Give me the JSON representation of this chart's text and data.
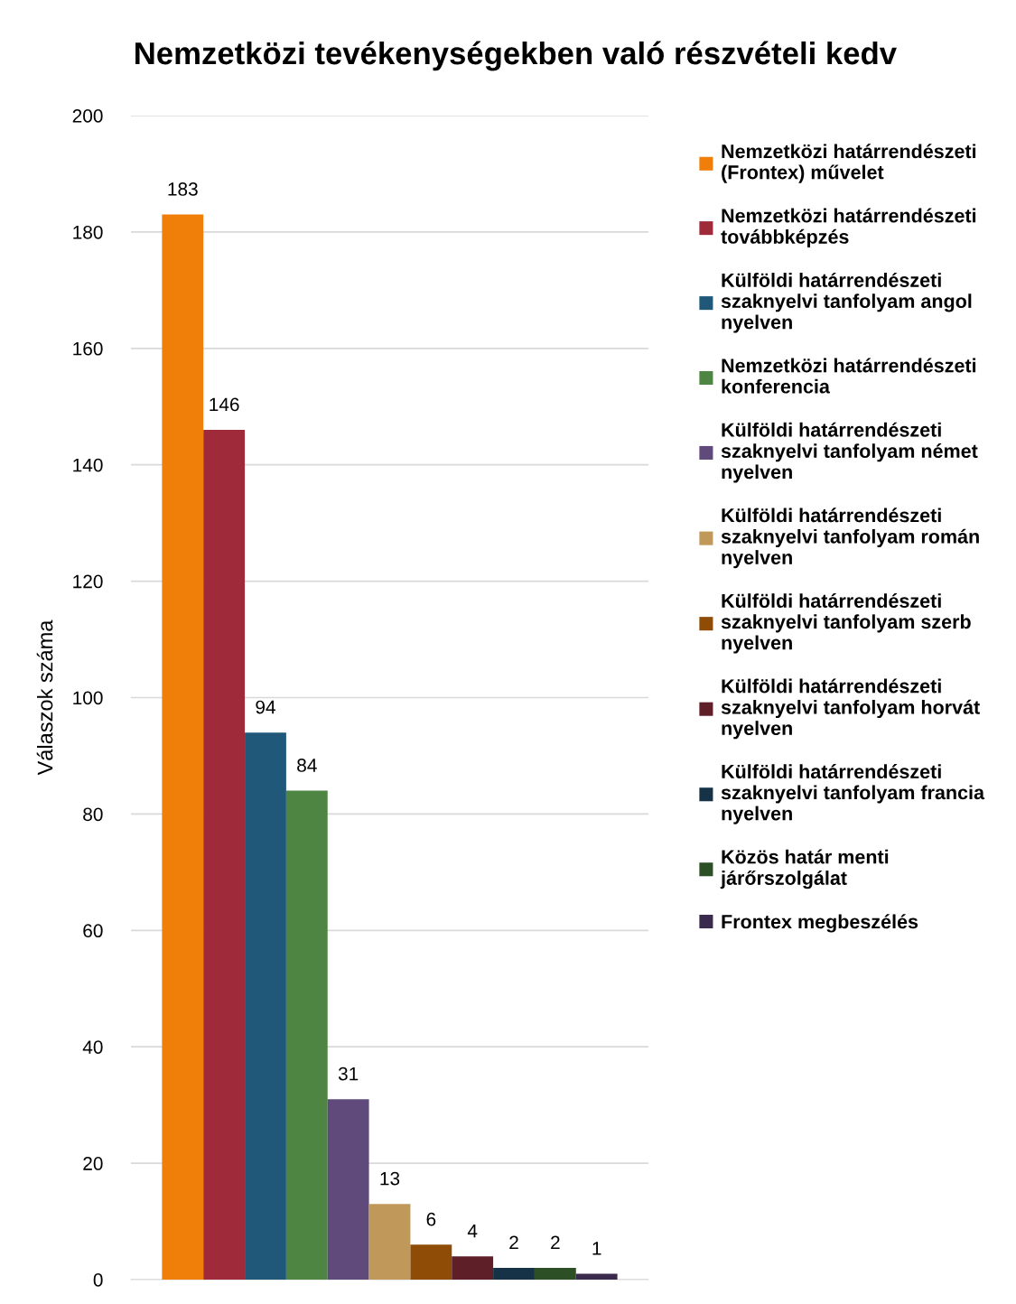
{
  "chart_data": {
    "type": "bar",
    "title": "Nemzetközi tevékenységekben való részvételi kedv",
    "ylabel": "Válaszok száma",
    "categories": [
      null
    ],
    "series": [
      {
        "name": "Nemzetközi határrendészeti (Frontex) művelet",
        "color": "#f07f09",
        "values": [
          183
        ]
      },
      {
        "name": "Nemzetközi határrendészeti továbbképzés",
        "color": "#9e2a3a",
        "values": [
          146
        ]
      },
      {
        "name": "Külföldi határrendészeti szaknyelvi tanfolyam angol nyelven",
        "color": "#1f5878",
        "values": [
          94
        ]
      },
      {
        "name": "Nemzetközi határrendészeti konferencia",
        "color": "#4e8542",
        "values": [
          84
        ]
      },
      {
        "name": "Külföldi határrendészeti szaknyelvi tanfolyam német nyelven",
        "color": "#604a7b",
        "values": [
          31
        ]
      },
      {
        "name": "Külföldi határrendészeti szaknyelvi tanfolyam román nyelven",
        "color": "#c0995a",
        "values": [
          13
        ]
      },
      {
        "name": "Külföldi határrendészeti szaknyelvi tanfolyam szerb nyelven",
        "color": "#8f4c07",
        "values": [
          6
        ]
      },
      {
        "name": "Külföldi határrendészeti szaknyelvi tanfolyam horvát nyelven",
        "color": "#5e1f28",
        "values": [
          4
        ]
      },
      {
        "name": "Külföldi határrendészeti szaknyelvi tanfolyam francia nyelven",
        "color": "#163246",
        "values": [
          2
        ]
      },
      {
        "name": "Közös határ menti járőrszolgálat",
        "color": "#2d4f26",
        "values": [
          2
        ]
      },
      {
        "name": "Frontex megbeszélés",
        "color": "#3a2b4c",
        "values": [
          1
        ]
      }
    ],
    "ylim": [
      0,
      200
    ],
    "yticks": [
      0,
      20,
      40,
      60,
      80,
      100,
      120,
      140,
      160,
      180,
      200
    ],
    "grid": "y",
    "legend": "right",
    "data_labels": true
  }
}
